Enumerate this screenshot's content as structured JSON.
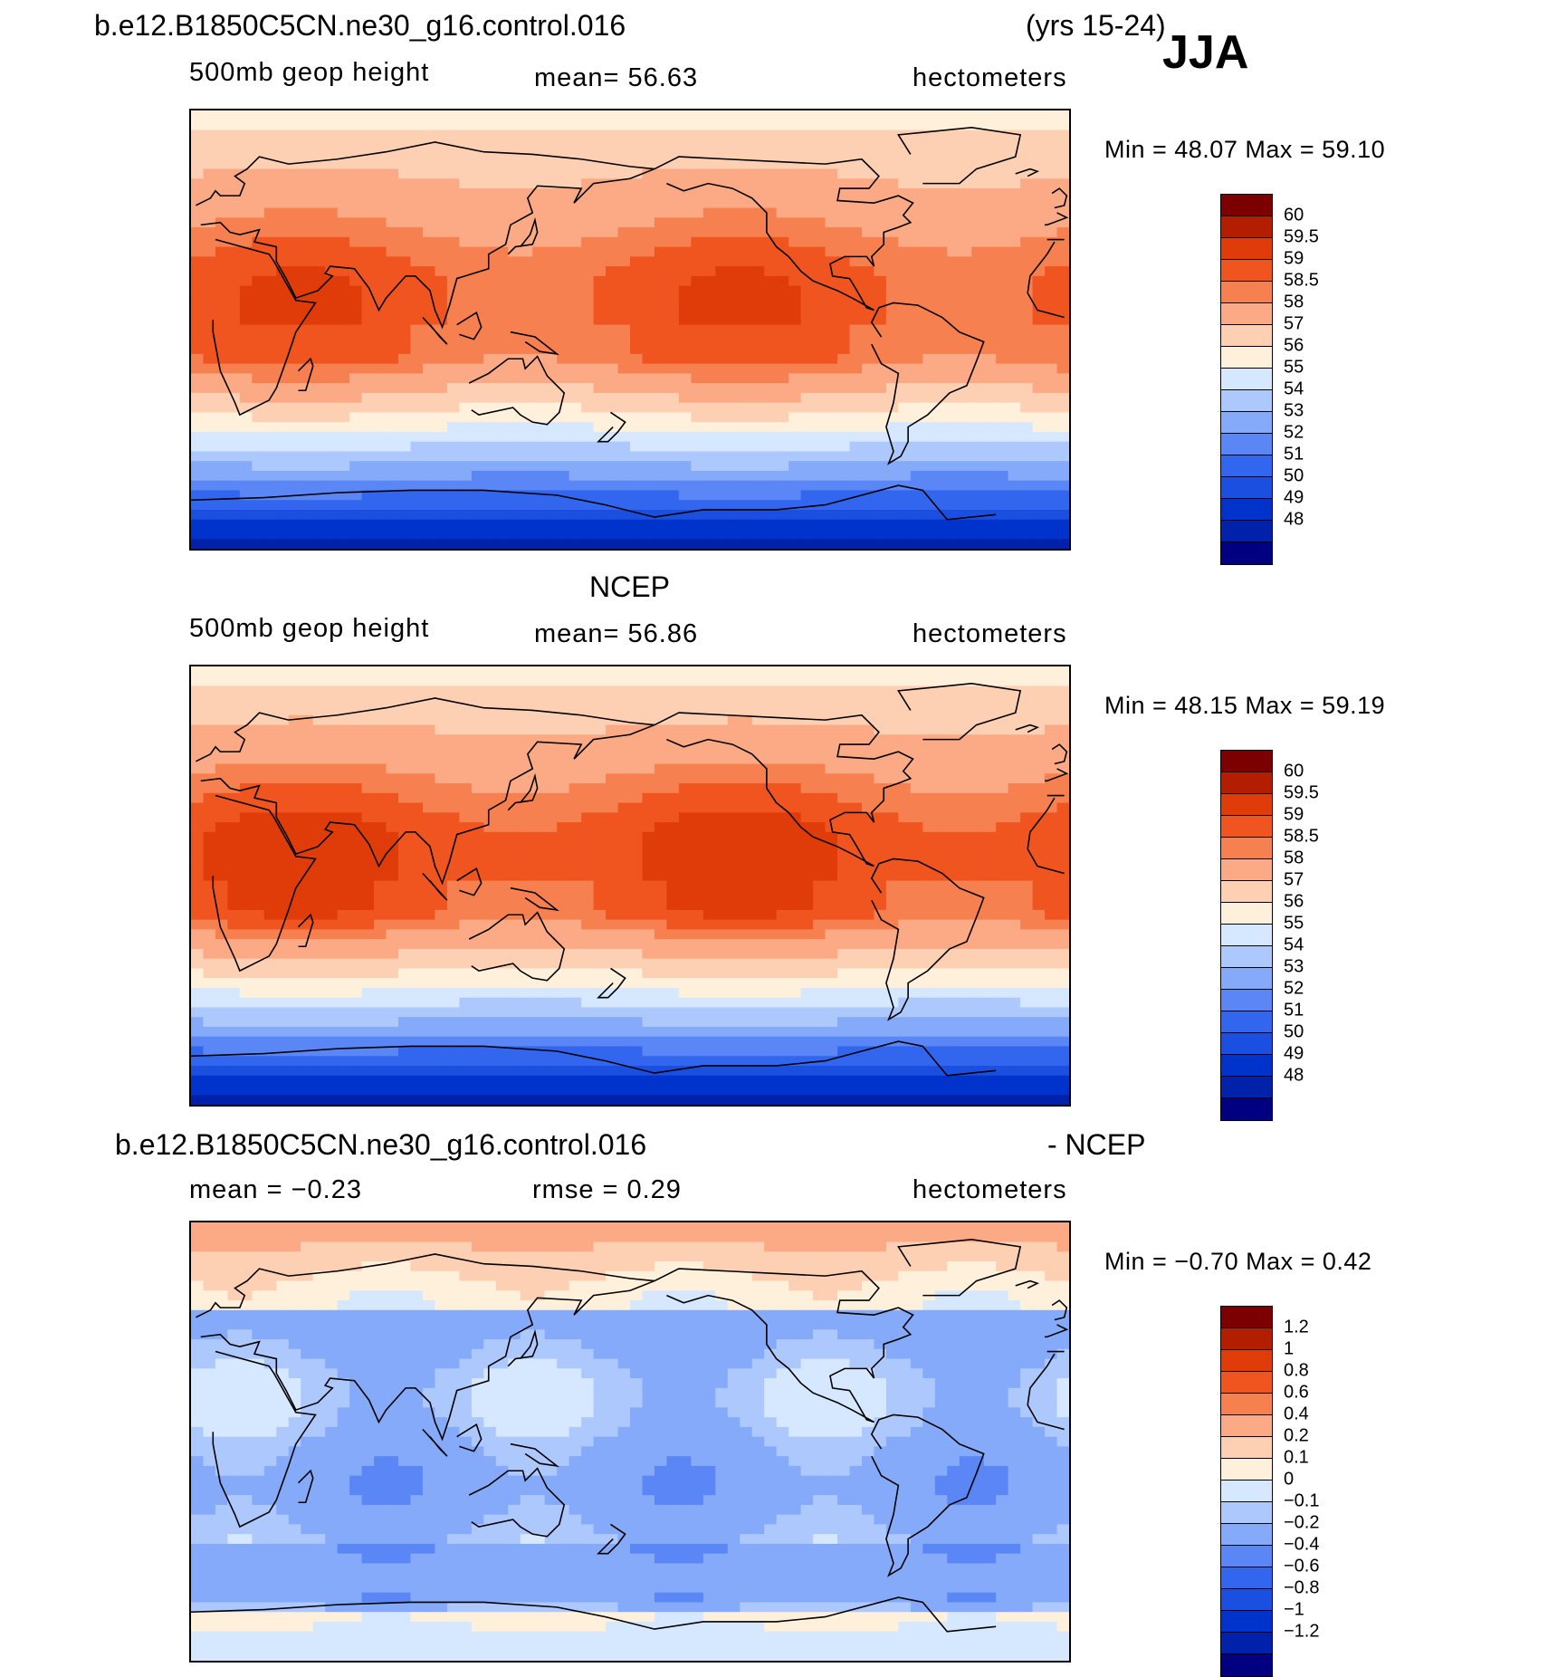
{
  "header": {
    "case_name": "b.e12.B1850C5CN.ne30_g16.control.016",
    "years": "(yrs 15-24)",
    "season": "JJA"
  },
  "colors": {
    "abs_scale": [
      "#000080",
      "#0022aa",
      "#0033cc",
      "#1a4fe0",
      "#3366ee",
      "#5a87f5",
      "#85aaf9",
      "#adc8fd",
      "#d6e8ff",
      "#fff0dc",
      "#fdd0b4",
      "#fbaa85",
      "#f78050",
      "#f05520",
      "#e03c0a",
      "#b31e00",
      "#7d0000"
    ],
    "diff_scale": [
      "#000080",
      "#0022aa",
      "#0033cc",
      "#1a4fe0",
      "#3366ee",
      "#5a87f5",
      "#85aaf9",
      "#adc8fd",
      "#d6e8ff",
      "#fff0dc",
      "#fdd0b4",
      "#fbaa85",
      "#f78050",
      "#f05520",
      "#e03c0a",
      "#b31e00",
      "#7d0000"
    ]
  },
  "panels": [
    {
      "title": "",
      "left_label": "500mb geop height",
      "center_label": "mean=   56.63",
      "right_label": "hectometers",
      "minmax": "Min =   48.07  Max =   59.10",
      "map_name": "model-map",
      "field_kind": "model",
      "colorbar_labels": [
        "60",
        "59.5",
        "59",
        "58.5",
        "58",
        "57",
        "56",
        "55",
        "54",
        "53",
        "52",
        "51",
        "50",
        "49",
        "48"
      ]
    },
    {
      "title": "NCEP",
      "left_label": "500mb geop height",
      "center_label": "mean=   56.86",
      "right_label": "hectometers",
      "minmax": "Min =   48.15  Max =   59.19",
      "map_name": "ncep-map",
      "field_kind": "obs",
      "colorbar_labels": [
        "60",
        "59.5",
        "59",
        "58.5",
        "58",
        "57",
        "56",
        "55",
        "54",
        "53",
        "52",
        "51",
        "50",
        "49",
        "48"
      ]
    },
    {
      "title_left": "b.e12.B1850C5CN.ne30_g16.control.016",
      "title_right": "- NCEP",
      "left_label": "mean =   −0.23",
      "center_label": "rmse =     0.29",
      "right_label": "hectometers",
      "minmax": "Min =   −0.70  Max =    0.42",
      "map_name": "difference-map",
      "field_kind": "diff",
      "colorbar_labels": [
        "1.2",
        "1",
        "0.8",
        "0.6",
        "0.4",
        "0.2",
        "0.1",
        "0",
        "−0.1",
        "−0.2",
        "−0.4",
        "−0.6",
        "−0.8",
        "−1",
        "−1.2"
      ]
    }
  ]
}
